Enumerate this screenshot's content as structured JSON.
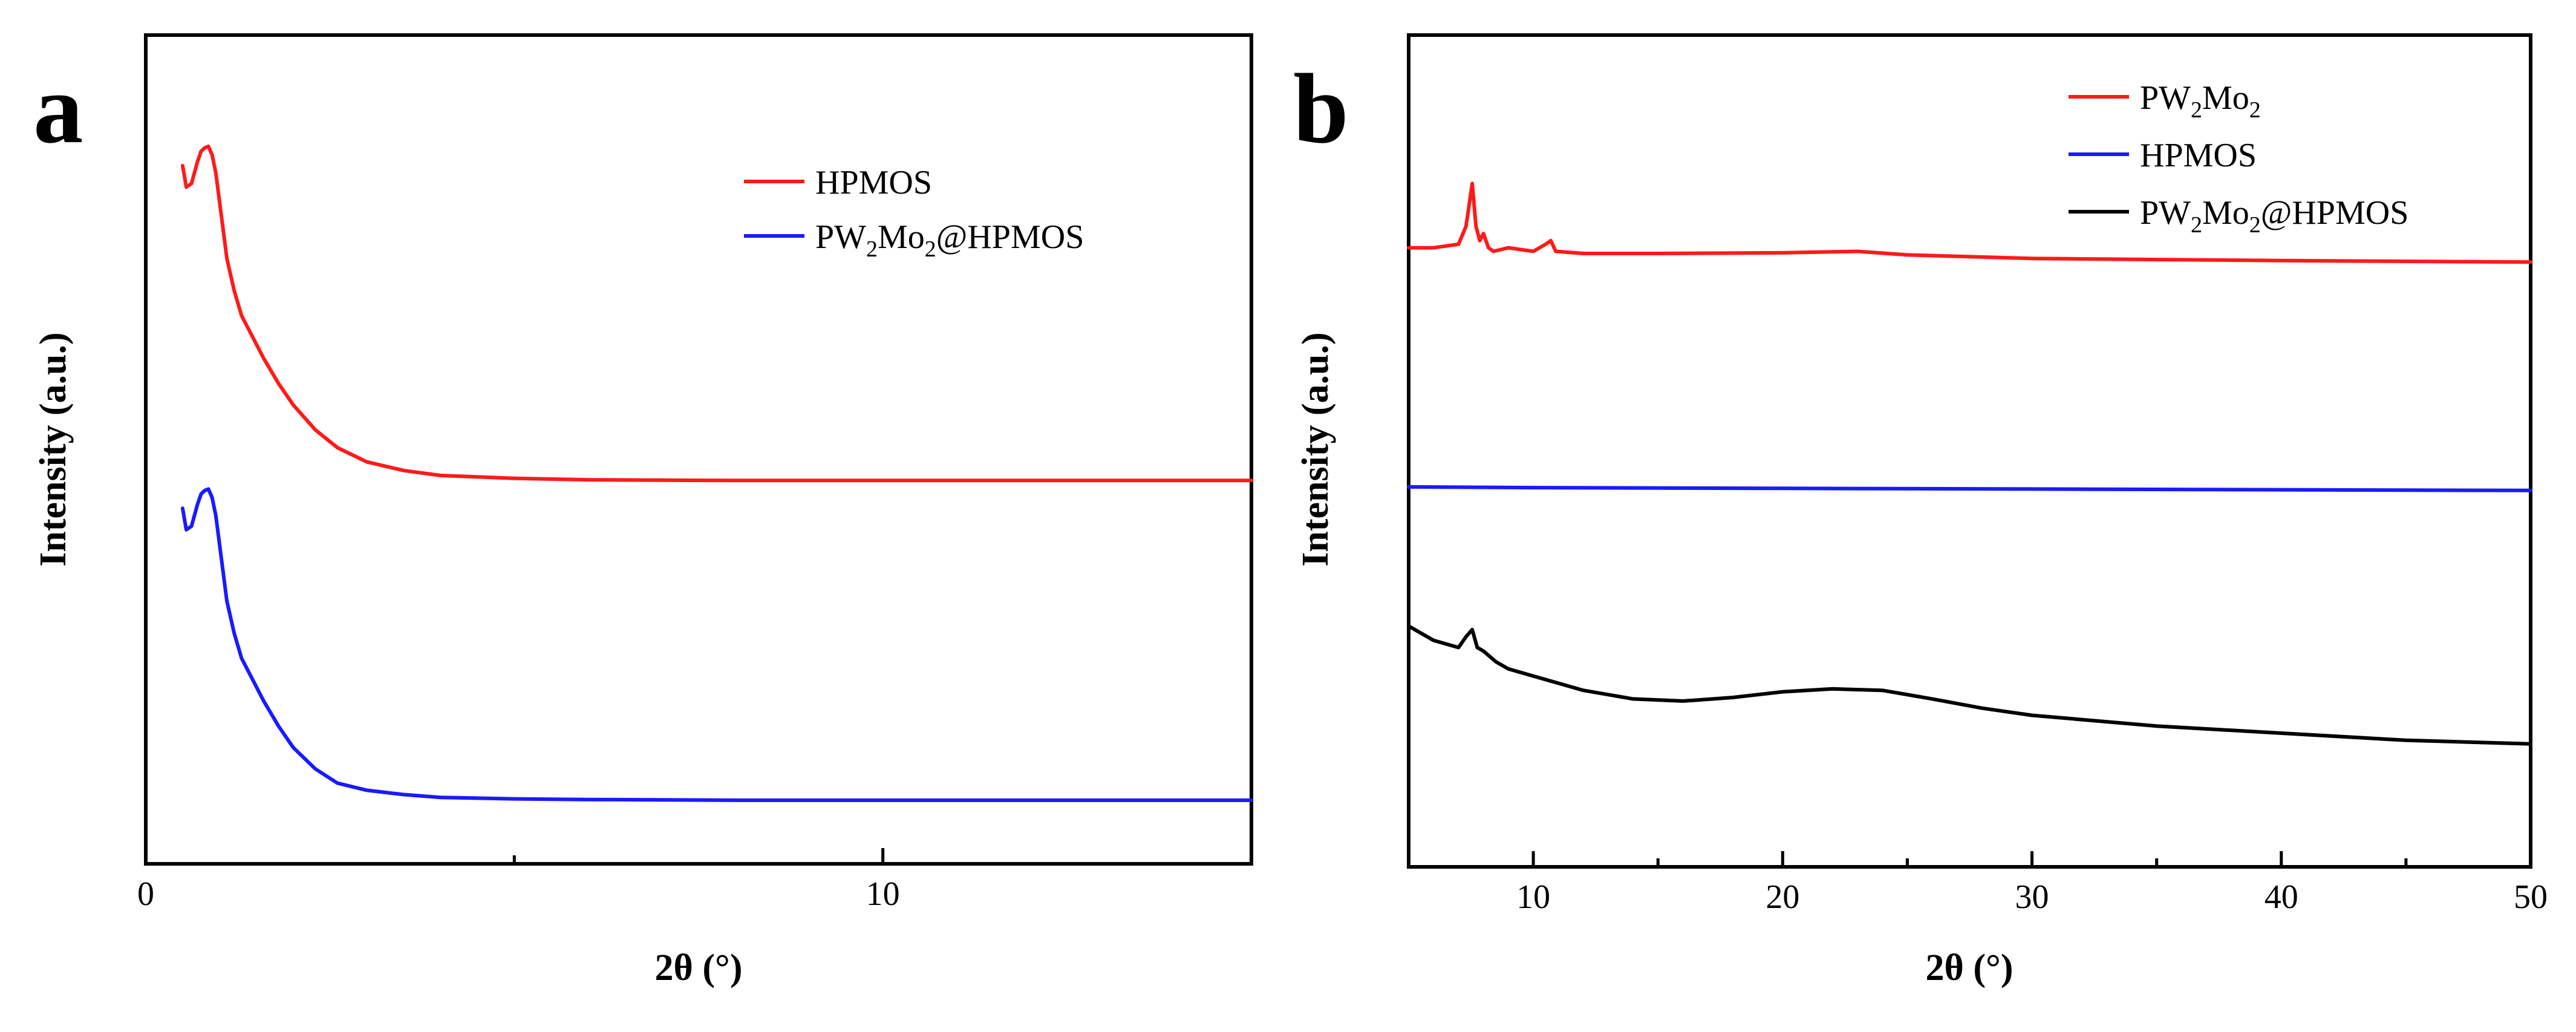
{
  "chart_data": [
    {
      "panel": "a",
      "type": "line",
      "xlabel": "2θ (°)",
      "ylabel": "Intensity (a.u.)",
      "xlim": [
        0,
        15
      ],
      "ylim": [
        0,
        1
      ],
      "xticks": [
        0,
        10
      ],
      "xtick_labels": [
        "0",
        "10"
      ],
      "minor_xticks": [
        5
      ],
      "legend": {
        "position": "top-right"
      },
      "series": [
        {
          "name": "HPMOS",
          "legend_label": {
            "base": "HPMOS",
            "parts": [
              {
                "t": "HPMOS"
              }
            ]
          },
          "color": "#ff1a1a",
          "x": [
            0.5,
            0.55,
            0.62,
            0.7,
            0.75,
            0.8,
            0.85,
            0.9,
            0.95,
            1.0,
            1.05,
            1.1,
            1.2,
            1.3,
            1.45,
            1.6,
            1.8,
            2.0,
            2.3,
            2.6,
            3.0,
            3.5,
            4.0,
            5.0,
            6.0,
            8.0,
            10.0,
            12.0,
            15.0
          ],
          "y": [
            0.895,
            0.865,
            0.87,
            0.9,
            0.915,
            0.92,
            0.922,
            0.91,
            0.885,
            0.845,
            0.805,
            0.765,
            0.72,
            0.685,
            0.655,
            0.625,
            0.59,
            0.56,
            0.525,
            0.5,
            0.48,
            0.468,
            0.461,
            0.457,
            0.455,
            0.454,
            0.454,
            0.454,
            0.454
          ]
        },
        {
          "name": "PW2Mo2@HPMOS",
          "legend_label": {
            "base": "PW2Mo2@HPMOS",
            "parts": [
              {
                "t": "PW"
              },
              {
                "t": "2",
                "sub": true
              },
              {
                "t": "Mo"
              },
              {
                "t": "2",
                "sub": true
              },
              {
                "t": "@HPMOS"
              }
            ]
          },
          "color": "#1a1aff",
          "x": [
            0.5,
            0.55,
            0.62,
            0.7,
            0.75,
            0.8,
            0.85,
            0.9,
            0.95,
            1.0,
            1.05,
            1.1,
            1.2,
            1.3,
            1.45,
            1.6,
            1.8,
            2.0,
            2.3,
            2.6,
            3.0,
            3.5,
            4.0,
            5.0,
            6.0,
            8.0,
            10.0,
            12.0,
            15.0
          ],
          "y": [
            0.415,
            0.385,
            0.39,
            0.42,
            0.435,
            0.44,
            0.442,
            0.43,
            0.405,
            0.365,
            0.325,
            0.285,
            0.24,
            0.205,
            0.175,
            0.145,
            0.11,
            0.08,
            0.05,
            0.03,
            0.02,
            0.014,
            0.01,
            0.008,
            0.007,
            0.006,
            0.006,
            0.006,
            0.006
          ]
        }
      ]
    },
    {
      "panel": "b",
      "type": "line",
      "xlabel": "2θ (°)",
      "ylabel": "Intensity (a.u.)",
      "xlim": [
        5,
        50
      ],
      "ylim": [
        0,
        1
      ],
      "xticks": [
        10,
        20,
        30,
        40,
        50
      ],
      "xtick_labels": [
        "10",
        "20",
        "30",
        "40",
        "50"
      ],
      "minor_xticks": [
        15,
        25,
        35,
        45
      ],
      "legend": {
        "position": "top-right"
      },
      "series": [
        {
          "name": "PW2Mo2",
          "legend_label": {
            "base": "PW2Mo2",
            "parts": [
              {
                "t": "PW"
              },
              {
                "t": "2",
                "sub": true
              },
              {
                "t": "Mo"
              },
              {
                "t": "2",
                "sub": true
              }
            ]
          },
          "color": "#ff1a1a",
          "x": [
            5,
            6,
            7,
            7.3,
            7.55,
            7.7,
            7.85,
            8.0,
            8.2,
            8.4,
            9,
            10,
            10.5,
            10.7,
            10.9,
            12,
            15,
            20,
            23,
            25,
            30,
            40,
            50
          ],
          "y": [
            0.78,
            0.78,
            0.785,
            0.81,
            0.87,
            0.81,
            0.79,
            0.8,
            0.78,
            0.775,
            0.78,
            0.775,
            0.785,
            0.79,
            0.775,
            0.772,
            0.772,
            0.773,
            0.775,
            0.77,
            0.765,
            0.762,
            0.76
          ]
        },
        {
          "name": "HPMOS",
          "legend_label": {
            "base": "HPMOS",
            "parts": [
              {
                "t": "HPMOS"
              }
            ]
          },
          "color": "#1a1aff",
          "x": [
            5,
            10,
            20,
            30,
            40,
            50
          ],
          "y": [
            0.445,
            0.444,
            0.443,
            0.442,
            0.441,
            0.44
          ]
        },
        {
          "name": "PW2Mo2@HPMOS",
          "legend_label": {
            "base": "PW2Mo2@HPMOS",
            "parts": [
              {
                "t": "PW"
              },
              {
                "t": "2",
                "sub": true
              },
              {
                "t": "Mo"
              },
              {
                "t": "2",
                "sub": true
              },
              {
                "t": "@HPMOS"
              }
            ]
          },
          "color": "#000000",
          "x": [
            5,
            6,
            7,
            7.3,
            7.55,
            7.75,
            8,
            8.5,
            9,
            10,
            11,
            12,
            14,
            16,
            18,
            20,
            22,
            24,
            26,
            28,
            30,
            35,
            40,
            45,
            50
          ],
          "y": [
            0.25,
            0.23,
            0.22,
            0.235,
            0.245,
            0.22,
            0.215,
            0.2,
            0.19,
            0.18,
            0.17,
            0.16,
            0.148,
            0.145,
            0.15,
            0.158,
            0.162,
            0.16,
            0.148,
            0.135,
            0.125,
            0.11,
            0.1,
            0.09,
            0.085
          ]
        }
      ]
    }
  ]
}
